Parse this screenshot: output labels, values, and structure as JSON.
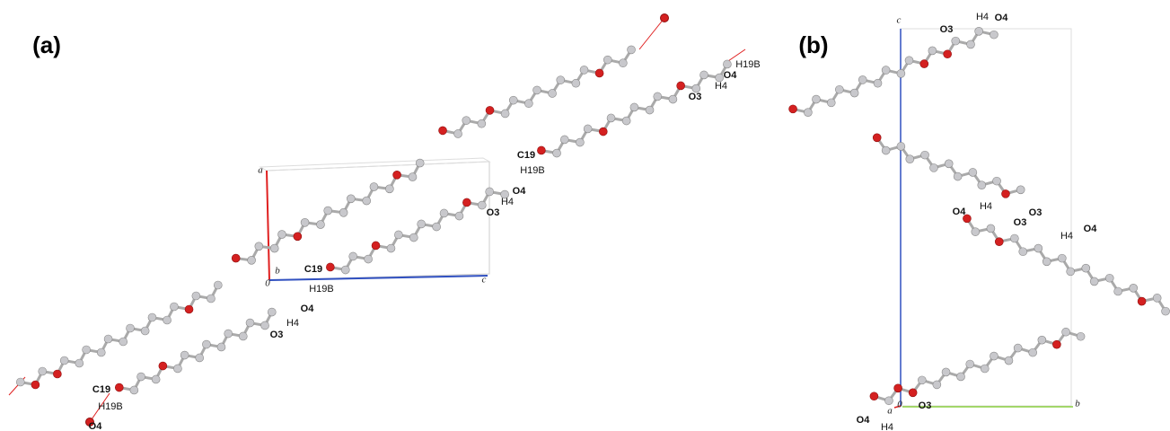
{
  "panels": [
    {
      "label": "(a)",
      "atom_labels": [
        "H19B",
        "O4",
        "H4",
        "O3",
        "C19",
        "H19B",
        "O4",
        "H4",
        "O3",
        "C19",
        "H19B",
        "O4",
        "H4",
        "O3",
        "C19",
        "H19B",
        "O4"
      ],
      "axis_labels": [
        "a",
        "b",
        "0",
        "c"
      ]
    },
    {
      "label": "(b)",
      "atom_labels": [
        "H4",
        "O4",
        "O3",
        "O4",
        "H4",
        "O3",
        "O3",
        "H4",
        "O4",
        "O3",
        "O4",
        "H4"
      ],
      "axis_labels": [
        "c",
        "0",
        "b",
        "a"
      ]
    }
  ]
}
